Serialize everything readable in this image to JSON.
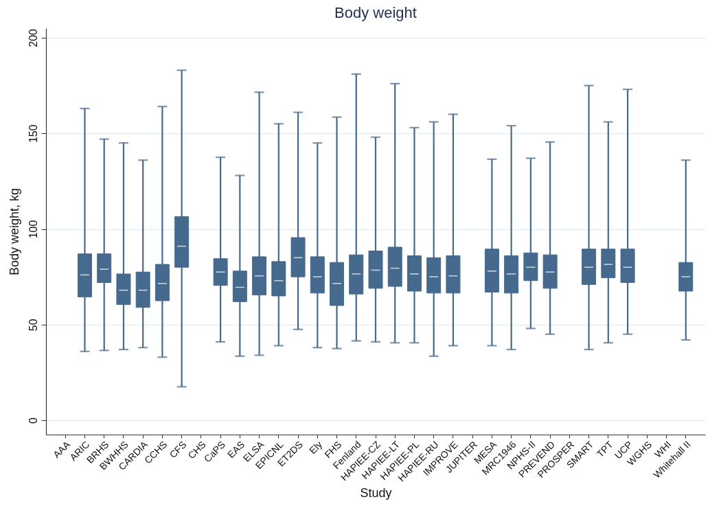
{
  "chart_data": {
    "type": "box",
    "title": "Body weight",
    "xlabel": "Study",
    "ylabel": "Body weight, kg",
    "categories": [
      "AAA",
      "ARIC",
      "BRHS",
      "BWHHS",
      "CARDIA",
      "CCHS",
      "CFS",
      "CHS",
      "CaPS",
      "EAS",
      "ELSA",
      "EPICNL",
      "ET2DS",
      "Ely",
      "FHS",
      "Fenland",
      "HAPIEE-CZ",
      "HAPIEE-LT",
      "HAPIEE-PL",
      "HAPIEE-RU",
      "IMPROVE",
      "JUPITER",
      "MESA",
      "MRC1946",
      "NPHS-II",
      "PREVEND",
      "PROSPER",
      "SMART",
      "TPT",
      "UCP",
      "WGHS",
      "WHI",
      "Whitehall II"
    ],
    "ylim": [
      -7.5,
      205
    ],
    "yticks": [
      0,
      50,
      100,
      150,
      200
    ],
    "grid": "y",
    "series": [
      {
        "color": "#466a8d",
        "boxes": [
          null,
          {
            "low": 36,
            "q1": 64.5,
            "median": 76,
            "q3": 87,
            "high": 163
          },
          {
            "low": 36.5,
            "q1": 72,
            "median": 79,
            "q3": 87,
            "high": 147
          },
          {
            "low": 37,
            "q1": 60.5,
            "median": 68,
            "q3": 76.5,
            "high": 145
          },
          {
            "low": 38,
            "q1": 59,
            "median": 68,
            "q3": 77.5,
            "high": 136
          },
          {
            "low": 33,
            "q1": 62.5,
            "median": 71.5,
            "q3": 81.5,
            "high": 164
          },
          {
            "low": 17.5,
            "q1": 80,
            "median": 91,
            "q3": 106.5,
            "high": 183
          },
          null,
          {
            "low": 41,
            "q1": 70.5,
            "median": 77.5,
            "q3": 84.5,
            "high": 137.5
          },
          {
            "low": 33.5,
            "q1": 62,
            "median": 69.5,
            "q3": 78,
            "high": 128
          },
          {
            "low": 34,
            "q1": 65.5,
            "median": 75.5,
            "q3": 85.5,
            "high": 171.5
          },
          {
            "low": 39,
            "q1": 65,
            "median": 73,
            "q3": 83,
            "high": 155
          },
          {
            "low": 47.5,
            "q1": 75,
            "median": 85,
            "q3": 95.5,
            "high": 161
          },
          {
            "low": 38,
            "q1": 66.5,
            "median": 75,
            "q3": 85.5,
            "high": 145
          },
          {
            "low": 37.5,
            "q1": 60,
            "median": 71.5,
            "q3": 82.5,
            "high": 158.5
          },
          {
            "low": 41.5,
            "q1": 66,
            "median": 76.5,
            "q3": 86.5,
            "high": 181
          },
          {
            "low": 41,
            "q1": 69,
            "median": 78.5,
            "q3": 88.5,
            "high": 148
          },
          {
            "low": 40.5,
            "q1": 70,
            "median": 79.5,
            "q3": 90.5,
            "high": 176
          },
          {
            "low": 40.5,
            "q1": 67.5,
            "median": 76.5,
            "q3": 86,
            "high": 153
          },
          {
            "low": 33.5,
            "q1": 66.5,
            "median": 75,
            "q3": 85,
            "high": 156
          },
          {
            "low": 39,
            "q1": 66.5,
            "median": 75.5,
            "q3": 86,
            "high": 160
          },
          null,
          {
            "low": 39,
            "q1": 67,
            "median": 78,
            "q3": 89.5,
            "high": 136.5
          },
          {
            "low": 37,
            "q1": 66.5,
            "median": 76.5,
            "q3": 86,
            "high": 154
          },
          {
            "low": 48,
            "q1": 73,
            "median": 80,
            "q3": 87.5,
            "high": 137
          },
          {
            "low": 45,
            "q1": 69,
            "median": 77.5,
            "q3": 86.5,
            "high": 145.5
          },
          null,
          {
            "low": 37,
            "q1": 71,
            "median": 80,
            "q3": 89.5,
            "high": 175
          },
          {
            "low": 40.5,
            "q1": 74.5,
            "median": 81.5,
            "q3": 89.5,
            "high": 156
          },
          {
            "low": 45,
            "q1": 72,
            "median": 80,
            "q3": 89.5,
            "high": 173
          },
          null,
          null,
          {
            "low": 42,
            "q1": 67.5,
            "median": 75,
            "q3": 82.5,
            "high": 136
          }
        ]
      }
    ]
  }
}
